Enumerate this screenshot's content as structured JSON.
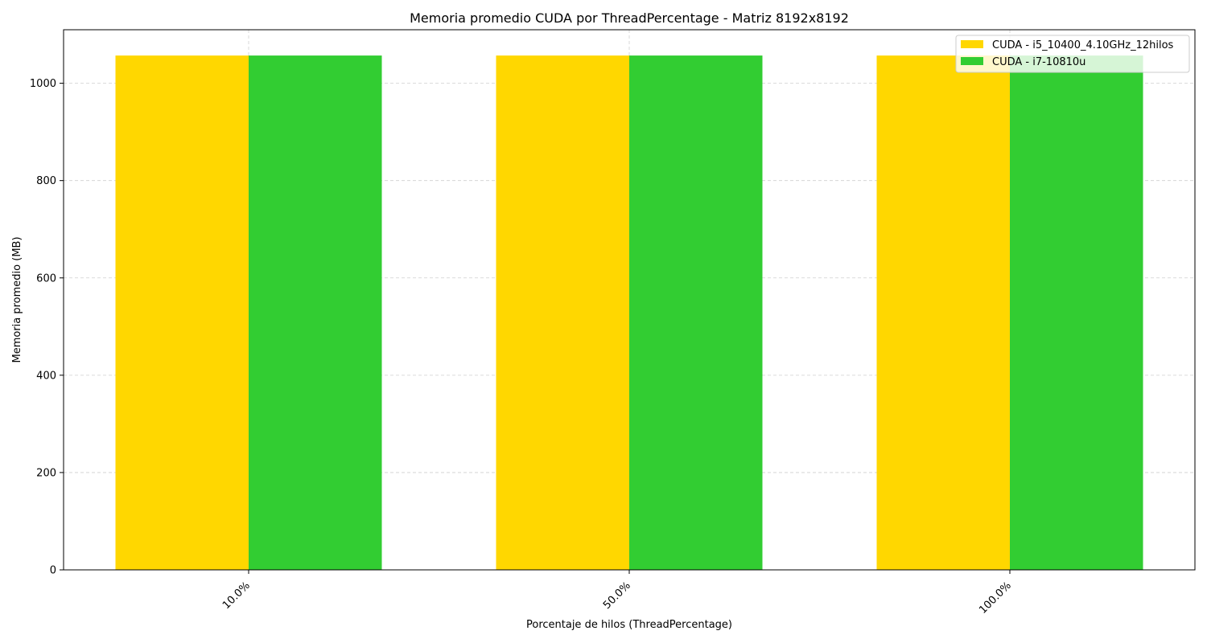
{
  "chart_data": {
    "type": "bar",
    "title": "Memoria promedio CUDA por ThreadPercentage - Matriz 8192x8192",
    "xlabel": "Porcentaje de hilos (ThreadPercentage)",
    "ylabel": "Memoria promedio (MB)",
    "categories": [
      "10.0%",
      "50.0%",
      "100.0%"
    ],
    "series": [
      {
        "name": "CUDA - i5_10400_4.10GHz_12hilos",
        "color": "#FFD700",
        "values": [
          1057,
          1057,
          1057
        ]
      },
      {
        "name": "CUDA - i7-10810u",
        "color": "#32CD32",
        "values": [
          1057,
          1057,
          1057
        ]
      }
    ],
    "ylim": [
      0,
      1110
    ],
    "yticks": [
      0,
      200,
      400,
      600,
      800,
      1000
    ],
    "grid": true,
    "legend_position": "top-right"
  }
}
